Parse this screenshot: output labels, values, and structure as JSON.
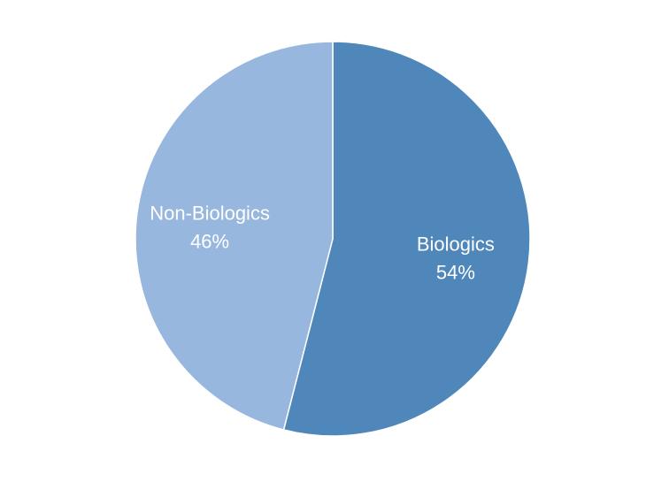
{
  "chart_data": {
    "type": "pie",
    "title": "",
    "slices": [
      {
        "label": "Biologics",
        "value": 54,
        "value_label": "54%",
        "color": "#4f87bb"
      },
      {
        "label": "Non-Biologics",
        "value": 46,
        "value_label": "46%",
        "color": "#97b7de"
      }
    ],
    "start_angle": "12 o'clock",
    "direction": "clockwise",
    "slice_border_color": "#ffffff",
    "label_color": "#ffffff",
    "legend": "none"
  }
}
